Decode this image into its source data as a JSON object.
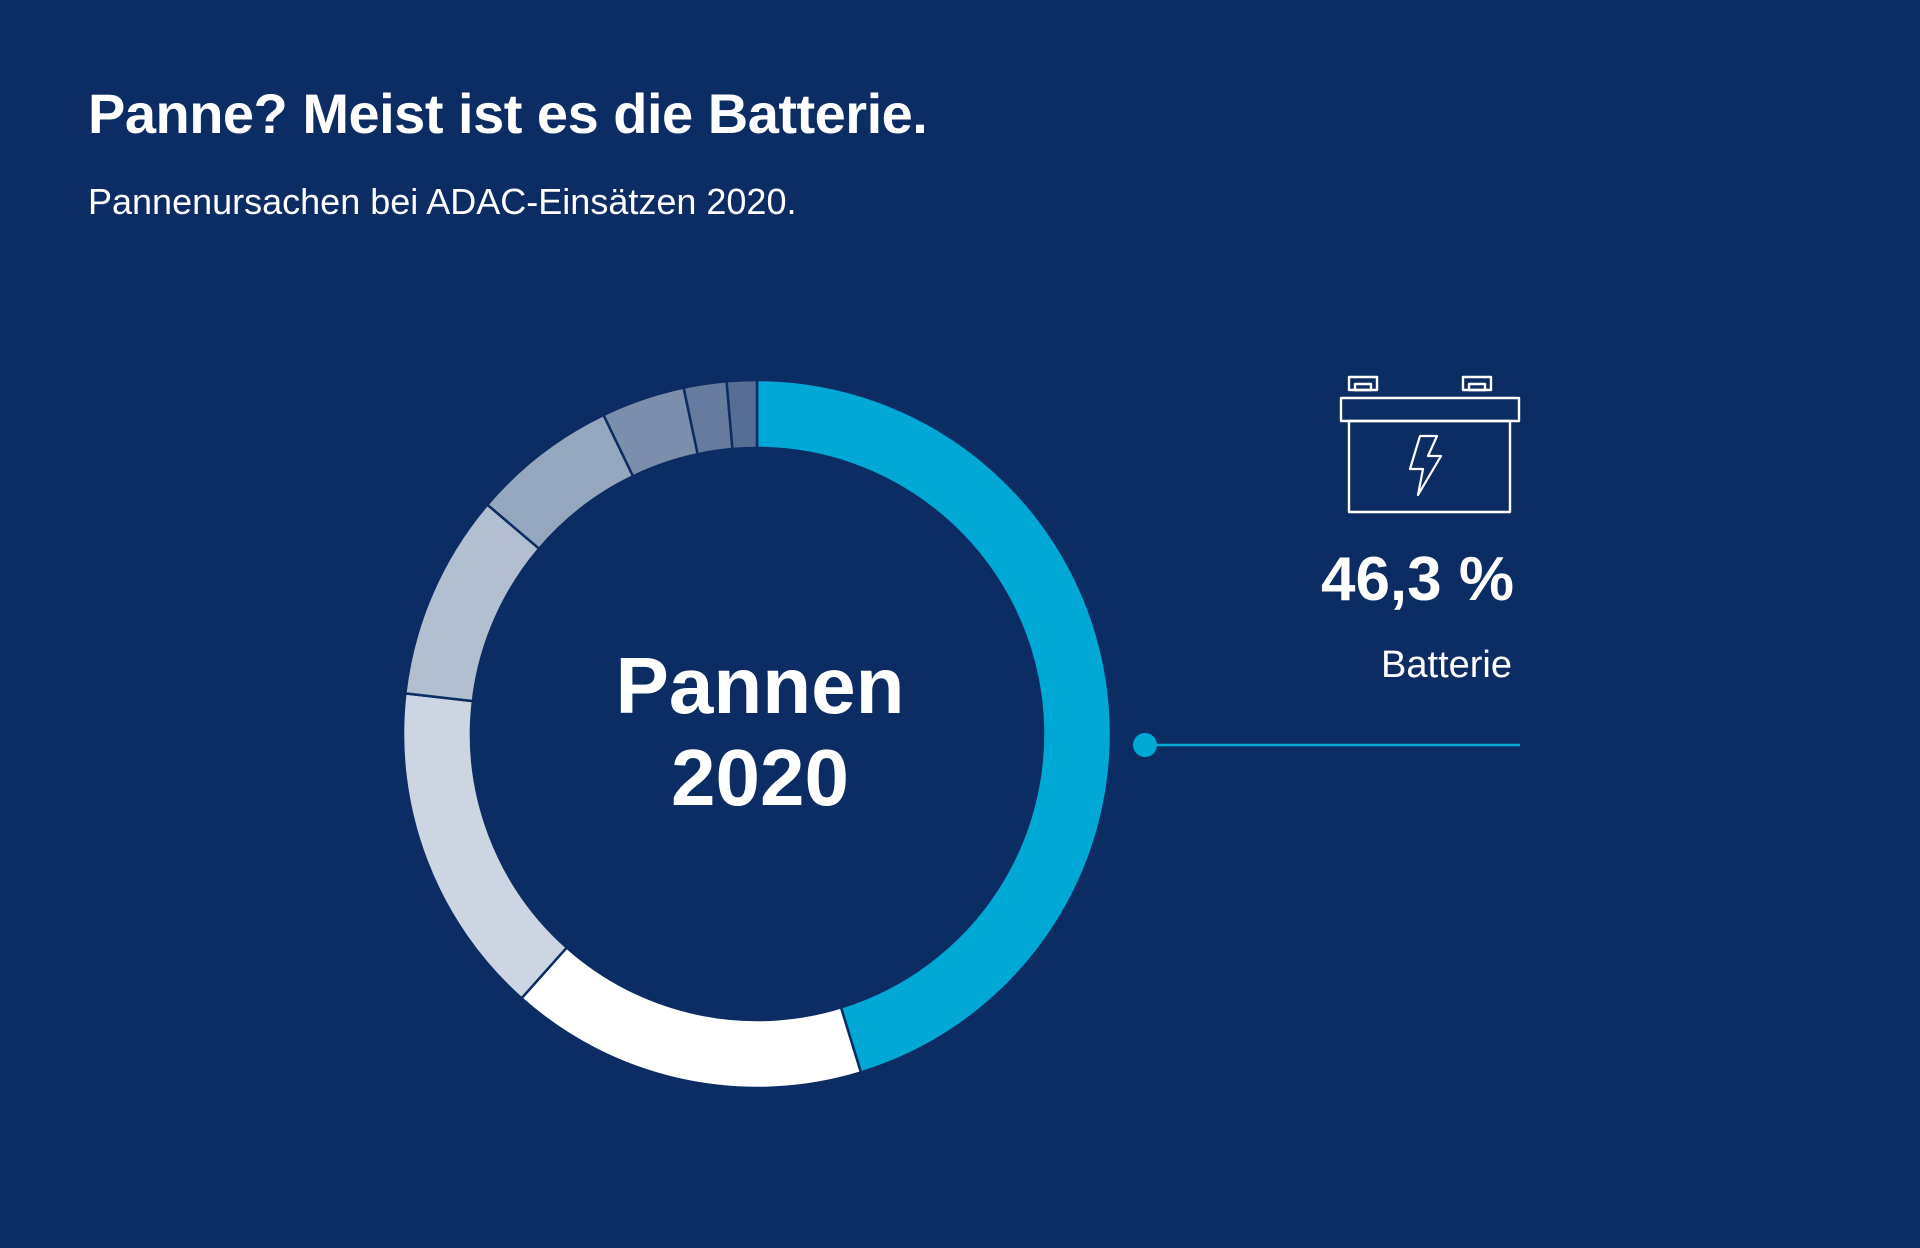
{
  "colors": {
    "background": "#0c2d63",
    "accent": "#00a8d6",
    "segment_colors": [
      "#00a8d6",
      "#ffffff",
      "#cdd5e2",
      "#b2bfd1",
      "#95a7bf",
      "#7b8fad",
      "#657c9f",
      "#566e94"
    ],
    "separator": "#0c2d63"
  },
  "header": {
    "title": "Panne? Meist ist es die Batterie.",
    "subtitle": "Pannenursachen bei ADAC-Einsätzen 2020."
  },
  "center": {
    "line1": "Pannen",
    "line2": "2020"
  },
  "callout": {
    "icon": "battery-icon",
    "value": "46,3 %",
    "label": "Batterie"
  },
  "chart_data": {
    "type": "pie",
    "donut": true,
    "start_angle": "12 o'clock",
    "direction": "clockwise",
    "slices": [
      {
        "label": "Batterie",
        "value": 46.3
      },
      {
        "value": 16.7
      },
      {
        "value": 15.6
      },
      {
        "value": 9.6
      },
      {
        "value": 6.8
      },
      {
        "value": 3.9
      },
      {
        "value": 2.0
      },
      {
        "value": 1.4
      }
    ]
  }
}
